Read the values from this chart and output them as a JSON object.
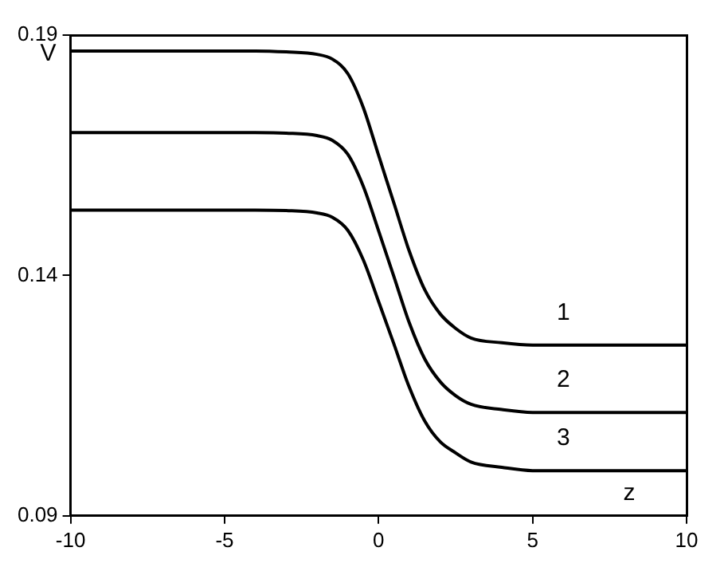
{
  "chart_data": {
    "type": "line",
    "xlabel": "z",
    "ylabel": "V",
    "x": [
      -10,
      -4,
      -3,
      -2,
      -1.5,
      -1,
      -0.5,
      0,
      0.5,
      1,
      1.5,
      2,
      2.5,
      3,
      4,
      5,
      10
    ],
    "series": [
      {
        "color": "#000000",
        "values": [
          0.1867,
          0.1867,
          0.1865,
          0.186,
          0.185,
          0.182,
          0.175,
          0.165,
          0.155,
          0.145,
          0.137,
          0.132,
          0.129,
          0.127,
          0.126,
          0.1255,
          0.1255
        ]
      },
      {
        "color": "#000000",
        "values": [
          0.1697,
          0.1697,
          0.1696,
          0.1691,
          0.1681,
          0.1652,
          0.1586,
          0.1493,
          0.1397,
          0.1301,
          0.1226,
          0.1179,
          0.115,
          0.1132,
          0.1121,
          0.1115,
          0.1115
        ]
      },
      {
        "color": "#000000",
        "values": [
          0.1536,
          0.1536,
          0.1535,
          0.153,
          0.1521,
          0.1494,
          0.1433,
          0.1346,
          0.1257,
          0.1167,
          0.1097,
          0.1054,
          0.1031,
          0.1012,
          0.1001,
          0.0994,
          0.0994
        ]
      }
    ],
    "annotations": [
      "1",
      "2",
      "3"
    ],
    "xlim": [
      -10,
      10
    ],
    "xticks": [
      -10,
      -5,
      0,
      5,
      10
    ],
    "ylim": [
      0.09,
      0.19
    ],
    "yticks": [
      0.09,
      0.14,
      0.19
    ],
    "grid": false,
    "legend": false,
    "marker": "none",
    "line_style": "solid"
  }
}
